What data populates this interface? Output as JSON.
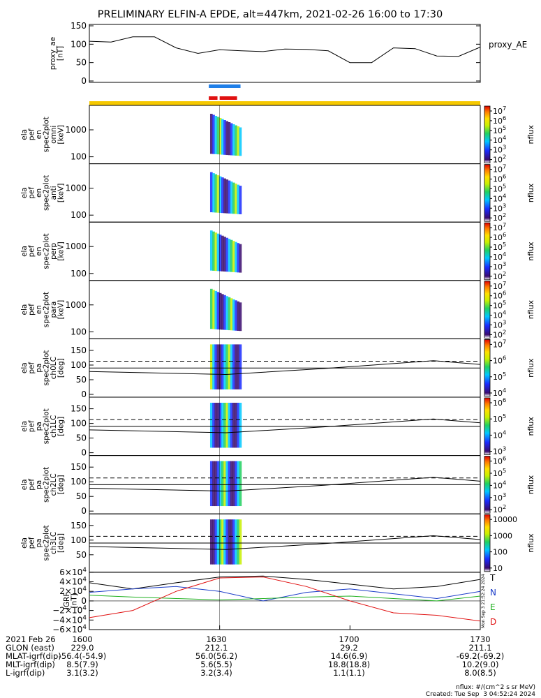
{
  "title": "PRELIMINARY ELFIN-A EPDE, alt=447km, 2021-02-26 16:00 to 17:30",
  "colors": {
    "blue_bar": "#1f7fe8",
    "red_bar": "#e01010",
    "yellow_bar": "#f5c800",
    "grf_T": "#000000",
    "grf_N": "#1a3cc8",
    "grf_E": "#20b020",
    "grf_D": "#e01010"
  },
  "chart_data": [
    {
      "type": "line",
      "name": "proxy_ae",
      "ylabel": [
        "proxy_ae",
        "[nT]"
      ],
      "legend": "proxy_AE",
      "ylim": [
        0,
        150
      ],
      "yticks": [
        "150",
        "100",
        "50",
        "0"
      ],
      "x": [
        "16:00",
        "16:05",
        "16:10",
        "16:15",
        "16:20",
        "16:25",
        "16:30",
        "16:35",
        "16:40",
        "16:45",
        "16:50",
        "16:55",
        "17:00",
        "17:05",
        "17:10",
        "17:15",
        "17:20",
        "17:25",
        "17:30"
      ],
      "values": [
        108,
        106,
        120,
        120,
        90,
        75,
        85,
        82,
        80,
        87,
        86,
        82,
        50,
        50,
        90,
        88,
        68,
        67,
        92
      ]
    },
    {
      "type": "heatmap",
      "panels": [
        {
          "ylabel": [
            "ela",
            "pef",
            "en",
            "spec2plot",
            "omni",
            "[keV]"
          ],
          "yticks": [
            "1000",
            "100"
          ],
          "zlabel": "nflux",
          "zticks": [
            "10^7",
            "10^6",
            "10^5",
            "10^4",
            "10^3",
            "10^2"
          ]
        },
        {
          "ylabel": [
            "ela",
            "pef",
            "en",
            "spec2plot",
            "anti",
            "[keV]"
          ],
          "yticks": [
            "1000",
            "100"
          ],
          "zlabel": "nflux",
          "zticks": [
            "10^7",
            "10^6",
            "10^5",
            "10^4",
            "10^3",
            "10^2"
          ]
        },
        {
          "ylabel": [
            "ela",
            "pef",
            "en",
            "spec2plot",
            "perp",
            "[keV]"
          ],
          "yticks": [
            "1000",
            "100"
          ],
          "zlabel": "nflux",
          "zticks": [
            "10^7",
            "10^6",
            "10^5",
            "10^4",
            "10^3",
            "10^2"
          ]
        },
        {
          "ylabel": [
            "ela",
            "pef",
            "en",
            "spec2plot",
            "para",
            "[keV]"
          ],
          "yticks": [
            "1000",
            "100"
          ],
          "zlabel": "nflux",
          "zticks": [
            "10^7",
            "10^6",
            "10^5",
            "10^4",
            "10^3",
            "10^2"
          ]
        },
        {
          "ylabel": [
            "ela",
            "pef",
            "pa",
            "spec2plot",
            "ch0LC",
            "[deg]"
          ],
          "yticks": [
            "150",
            "100",
            "50",
            "0"
          ],
          "zlabel": "nflux",
          "zticks": [
            "10^7",
            "10^6",
            "10^5",
            "10^4"
          ]
        },
        {
          "ylabel": [
            "ela",
            "pef",
            "pa",
            "spec2plot",
            "ch1LC",
            "[deg]"
          ],
          "yticks": [
            "150",
            "100",
            "50",
            "0"
          ],
          "zlabel": "nflux",
          "zticks": [
            "10^6",
            "10^5",
            "10^4",
            "10^3"
          ]
        },
        {
          "ylabel": [
            "ela",
            "pef",
            "pa",
            "spec2plot",
            "ch2LC",
            "[deg]"
          ],
          "yticks": [
            "150",
            "100",
            "50",
            "0"
          ],
          "zlabel": "nflux",
          "zticks": [
            "10^6",
            "10^5",
            "10^4",
            "10^3",
            "10^2"
          ]
        },
        {
          "ylabel": [
            "ela",
            "pef",
            "pa",
            "spec2plot",
            "ch3LC",
            "[deg]"
          ],
          "yticks": [
            "150",
            "100",
            "50"
          ],
          "zlabel": "nflux",
          "zticks": [
            "10000",
            "1000",
            "100",
            "10"
          ]
        }
      ]
    },
    {
      "type": "line",
      "name": "IGRF",
      "ylabel": [
        "IGRF",
        "[nT]"
      ],
      "ylim": [
        -60000,
        60000
      ],
      "yticks": [
        "6×10^4",
        "4×10^4",
        "2×10^4",
        "0",
        "−2×10^4",
        "−4×10^4",
        "−6×10^4"
      ],
      "x": [
        "16:00",
        "16:10",
        "16:20",
        "16:30",
        "16:40",
        "16:50",
        "17:00",
        "17:10",
        "17:20",
        "17:30"
      ],
      "series": [
        {
          "name": "T",
          "values": [
            38000,
            25000,
            38000,
            50000,
            52000,
            45000,
            35000,
            25000,
            30000,
            45000
          ]
        },
        {
          "name": "N",
          "values": [
            18000,
            25000,
            30000,
            20000,
            0,
            18000,
            25000,
            15000,
            5000,
            20000
          ]
        },
        {
          "name": "E",
          "values": [
            12000,
            8000,
            5000,
            2000,
            5000,
            8000,
            10000,
            5000,
            0,
            10000
          ]
        },
        {
          "name": "D",
          "values": [
            -35000,
            -20000,
            20000,
            48000,
            50000,
            30000,
            0,
            -25000,
            -30000,
            -42000
          ]
        }
      ],
      "legend": [
        "T",
        "N",
        "E",
        "D"
      ]
    }
  ],
  "side_note": "Mon Sep  3 21:52:24 2024",
  "footer": {
    "date_label": "2021 Feb 26",
    "x_ticks": [
      "1600",
      "1630",
      "1700",
      "1730"
    ],
    "rows": [
      {
        "label": "GLON (east)",
        "values": [
          "229.0",
          "212.1",
          "29.2",
          "211.1"
        ]
      },
      {
        "label": "MLAT-igrf(dip)",
        "values": [
          "-56.4(-54.9)",
          "56.0(56.2)",
          "14.6(6.9)",
          "-69.2(-69.2)"
        ]
      },
      {
        "label": "MLT-igrf(dip)",
        "values": [
          "8.5(7.9)",
          "5.6(5.5)",
          "18.8(18.8)",
          "10.2(9.0)"
        ]
      },
      {
        "label": "L-igrf(dip)",
        "values": [
          "3.1(3.2)",
          "3.2(3.4)",
          "1.1(1.1)",
          "8.0(8.5)"
        ]
      }
    ],
    "units_note": "nflux: #/(cm^2 s sr MeV)",
    "created": "Created: Tue Sep  3 04:52:24 2024"
  }
}
